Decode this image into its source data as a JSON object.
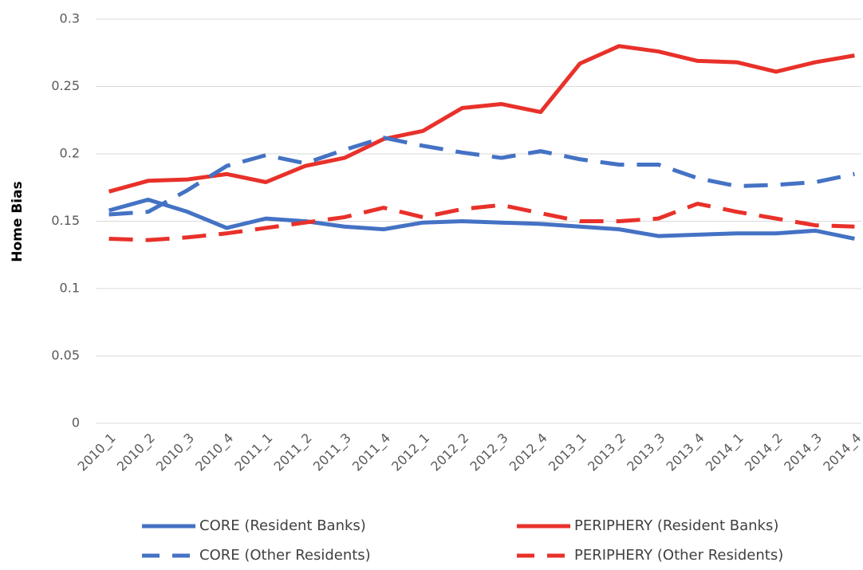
{
  "chart_data": {
    "type": "line",
    "y_label": "Home Bias",
    "categories": [
      "2010_1",
      "2010_2",
      "2010_3",
      "2010_4",
      "2011_1",
      "2011_2",
      "2011_3",
      "2011_4",
      "2012_1",
      "2012_2",
      "2012_3",
      "2012_4",
      "2013_1",
      "2013_2",
      "2013_3",
      "2013_4",
      "2014_1",
      "2014_2",
      "2014_3",
      "2014_4"
    ],
    "series": [
      {
        "name": "CORE (Resident Banks)",
        "color": "#4472c4",
        "line_style": "solid",
        "values": [
          0.158,
          0.166,
          0.157,
          0.145,
          0.152,
          0.15,
          0.146,
          0.144,
          0.149,
          0.15,
          0.149,
          0.148,
          0.146,
          0.144,
          0.139,
          0.14,
          0.141,
          0.141,
          0.143,
          0.137
        ]
      },
      {
        "name": "PERIPHERY (Resident Banks)",
        "color": "#e8312a",
        "line_style": "solid",
        "values": [
          0.172,
          0.18,
          0.181,
          0.185,
          0.179,
          0.191,
          0.197,
          0.211,
          0.217,
          0.234,
          0.237,
          0.231,
          0.267,
          0.28,
          0.276,
          0.269,
          0.268,
          0.261,
          0.268,
          0.273
        ]
      },
      {
        "name": "CORE (Other Residents)",
        "color": "#4472c4",
        "line_style": "dashed",
        "values": [
          0.155,
          0.157,
          0.173,
          0.191,
          0.199,
          0.193,
          0.203,
          0.212,
          0.206,
          0.201,
          0.197,
          0.202,
          0.196,
          0.192,
          0.192,
          0.182,
          0.176,
          0.177,
          0.179,
          0.185
        ]
      },
      {
        "name": "PERIPHERY (Other Residents)",
        "color": "#e8312a",
        "line_style": "dashed",
        "values": [
          0.137,
          0.136,
          0.138,
          0.141,
          0.145,
          0.149,
          0.153,
          0.16,
          0.153,
          0.159,
          0.162,
          0.156,
          0.15,
          0.15,
          0.152,
          0.163,
          0.157,
          0.152,
          0.147,
          0.146
        ]
      }
    ],
    "ylim": [
      0,
      0.3
    ],
    "yticks": [
      0,
      0.05,
      0.1,
      0.15,
      0.2,
      0.25,
      0.3
    ],
    "grid": true,
    "legend": "bottom"
  }
}
